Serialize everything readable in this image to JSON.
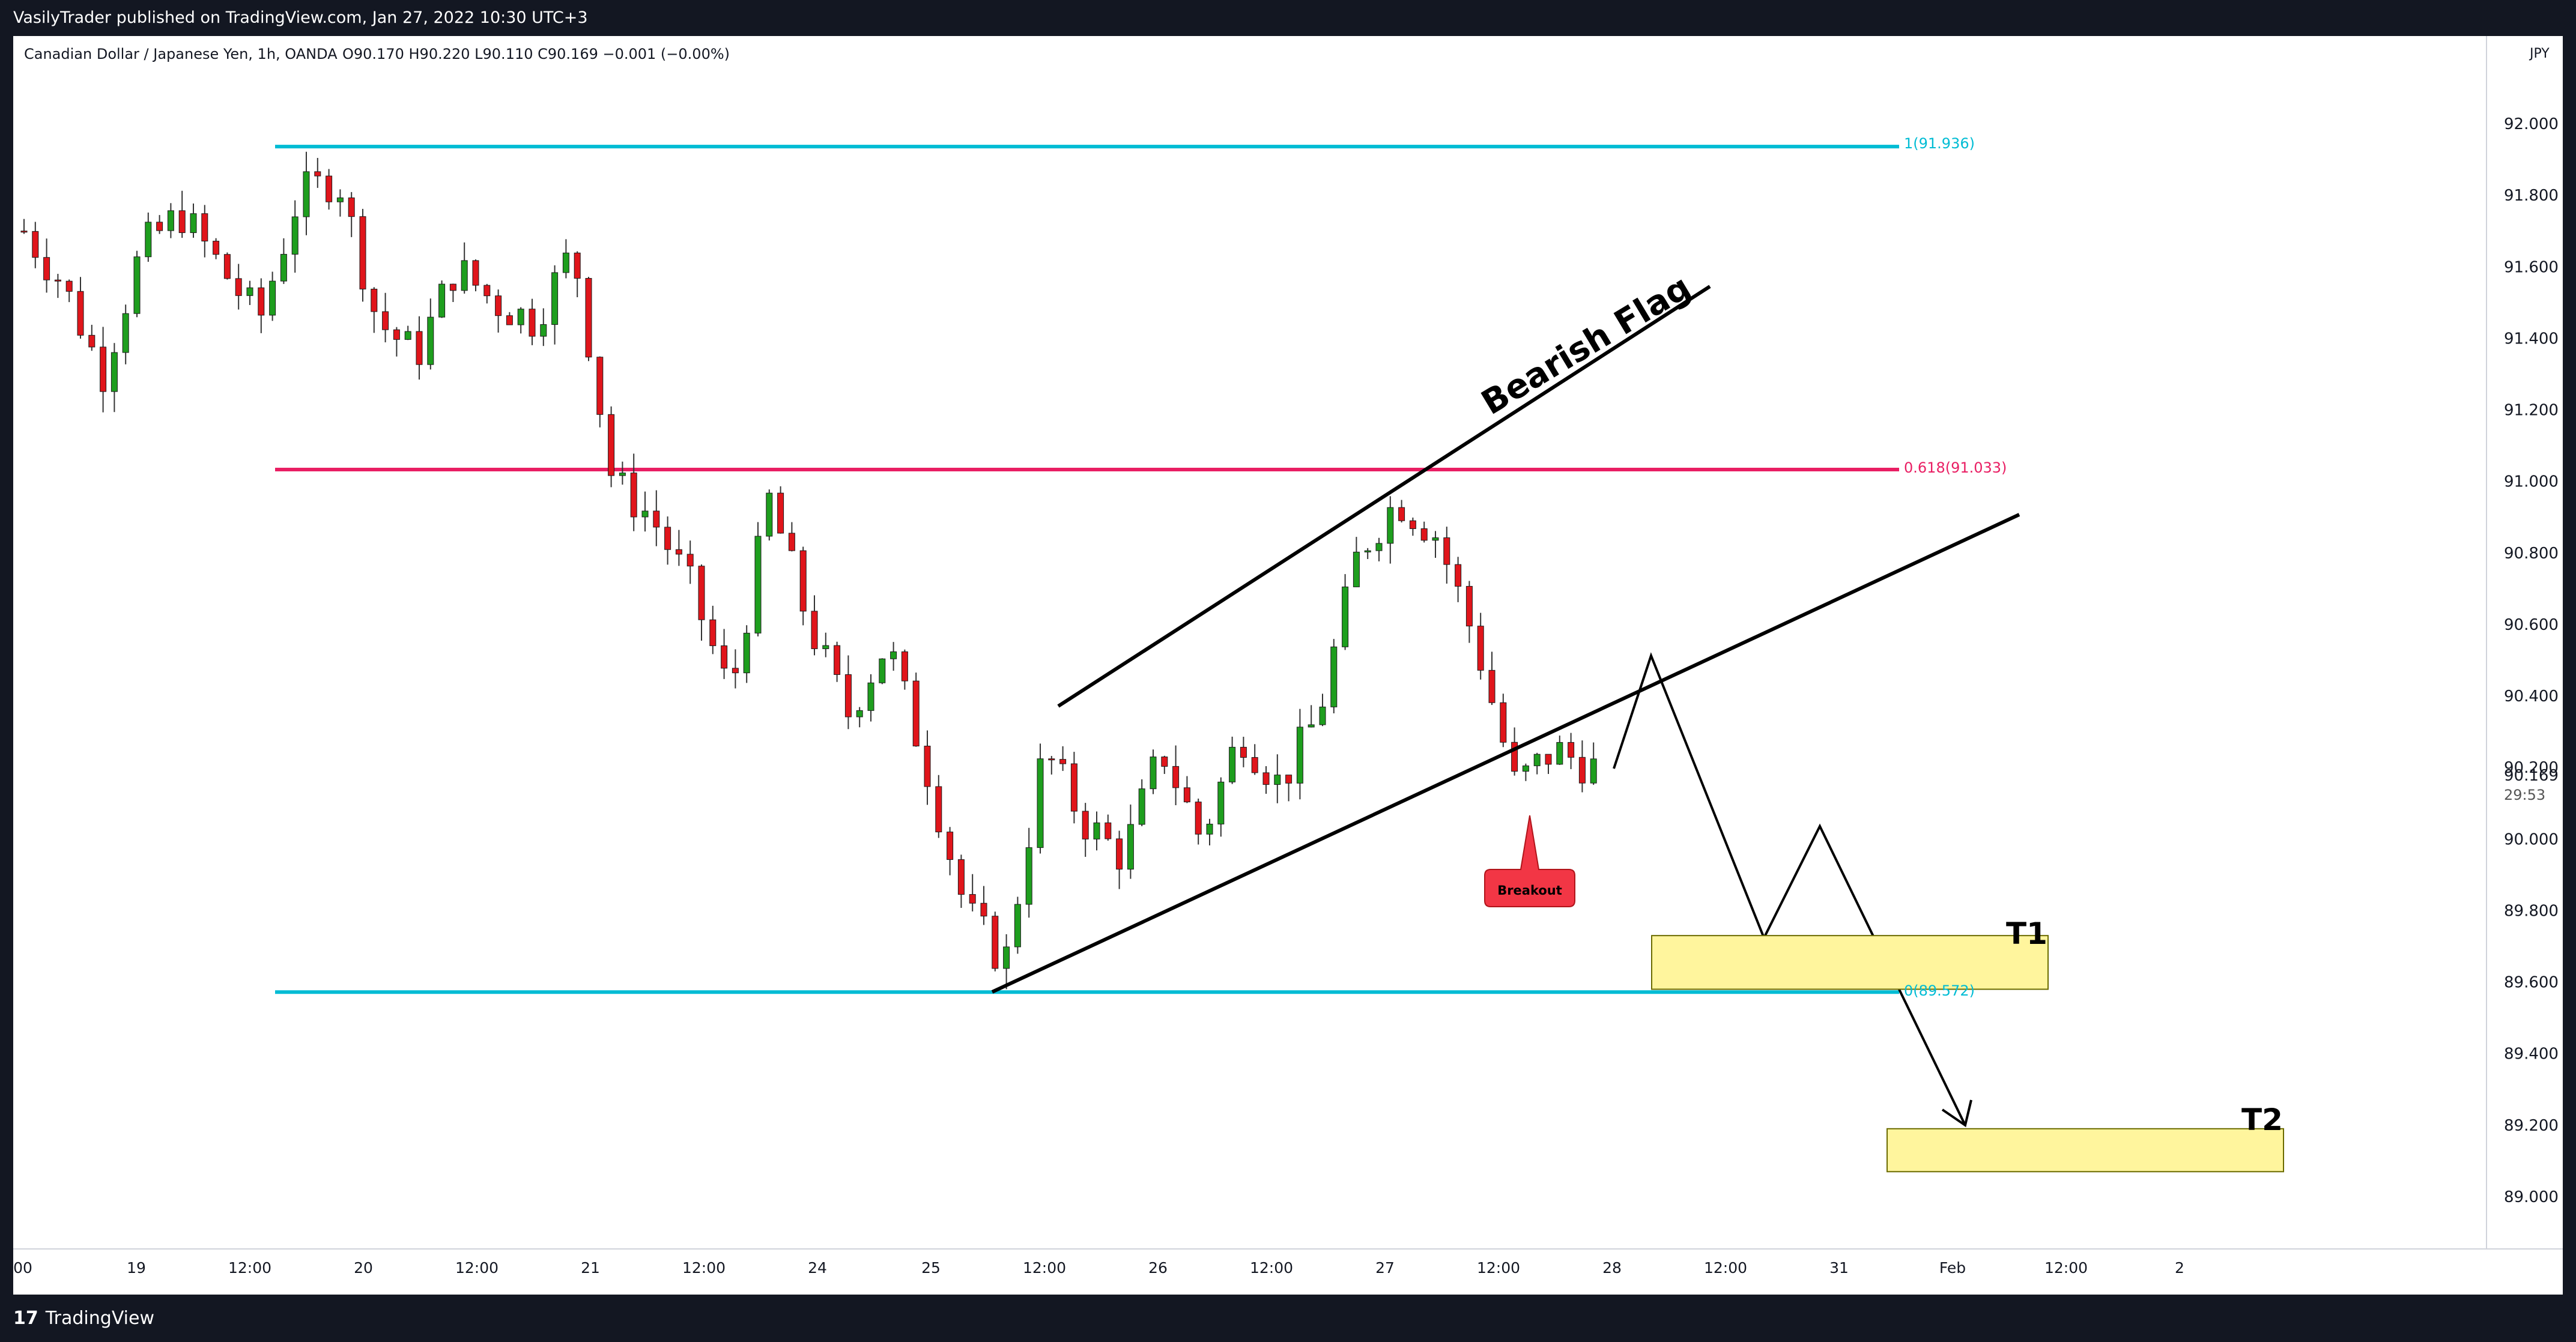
{
  "publish_line": "VasilyTrader published on TradingView.com, Jan 27, 2022 10:30 UTC+3",
  "branding": {
    "logo_mark": "17",
    "logo_text": "TradingView"
  },
  "header": {
    "symbol_line": "Canadian Dollar / Japanese Yen, 1h, OANDA",
    "ohlc": "O90.170  H90.220  L90.110  C90.169  −0.001 (−0.00%)",
    "currency": "JPY"
  },
  "price_axis": {
    "ticks": [
      "92.000",
      "91.800",
      "91.600",
      "91.400",
      "91.200",
      "91.000",
      "90.800",
      "90.600",
      "90.400",
      "90.200",
      "90.000",
      "89.800",
      "89.600",
      "89.400",
      "89.200",
      "89.000"
    ],
    "last_price": "90.169",
    "countdown": "29:53"
  },
  "time_axis": {
    "labels": [
      "00",
      "19",
      "12:00",
      "20",
      "12:00",
      "21",
      "12:00",
      "24",
      "25",
      "12:00",
      "26",
      "12:00",
      "27",
      "12:00",
      "28",
      "12:00",
      "31",
      "Feb",
      "12:00",
      "2"
    ]
  },
  "annotations": {
    "fib_top": "1(91.936)",
    "fib_mid": "0.618(91.033)",
    "fib_bottom": "0(89.572)",
    "pattern": "Bearish Flag",
    "breakout": "Breakout",
    "target1": "T1",
    "target2": "T2"
  },
  "colors": {
    "up": "#089981",
    "up_fill": "#1e9e1e",
    "down": "#e0151b",
    "wick": "#333333",
    "fib_cyan": "#00bcd4",
    "fib_red": "#e91e63",
    "target_fill": "#fff59d",
    "breakout": "#f23645"
  },
  "chart_data": {
    "type": "candlestick",
    "title": "Canadian Dollar / Japanese Yen, 1h, OANDA",
    "ylim": [
      88.6,
      92.2
    ],
    "close_series_approx": [
      91.7,
      91.55,
      91.3,
      91.65,
      91.75,
      91.6,
      91.45,
      91.8,
      91.85,
      91.45,
      91.35,
      91.6,
      91.5,
      91.45,
      91.65,
      91.0,
      90.9,
      90.7,
      90.4,
      90.95,
      90.6,
      90.35,
      90.55,
      90.2,
      89.8,
      89.65,
      90.25,
      90.05,
      89.95,
      90.25,
      90.0,
      90.3,
      90.15,
      90.35,
      90.8,
      90.95,
      90.85,
      90.55,
      90.15,
      90.25,
      90.2
    ],
    "last_close": 90.169,
    "levels": [
      {
        "label": "1(91.936)",
        "value": 91.936
      },
      {
        "label": "0.618(91.033)",
        "value": 91.033
      },
      {
        "label": "0(89.572)",
        "value": 89.572
      }
    ],
    "targets": [
      {
        "label": "T1",
        "low": 89.58,
        "high": 89.73
      },
      {
        "label": "T2",
        "low": 89.07,
        "high": 89.19
      }
    ]
  }
}
